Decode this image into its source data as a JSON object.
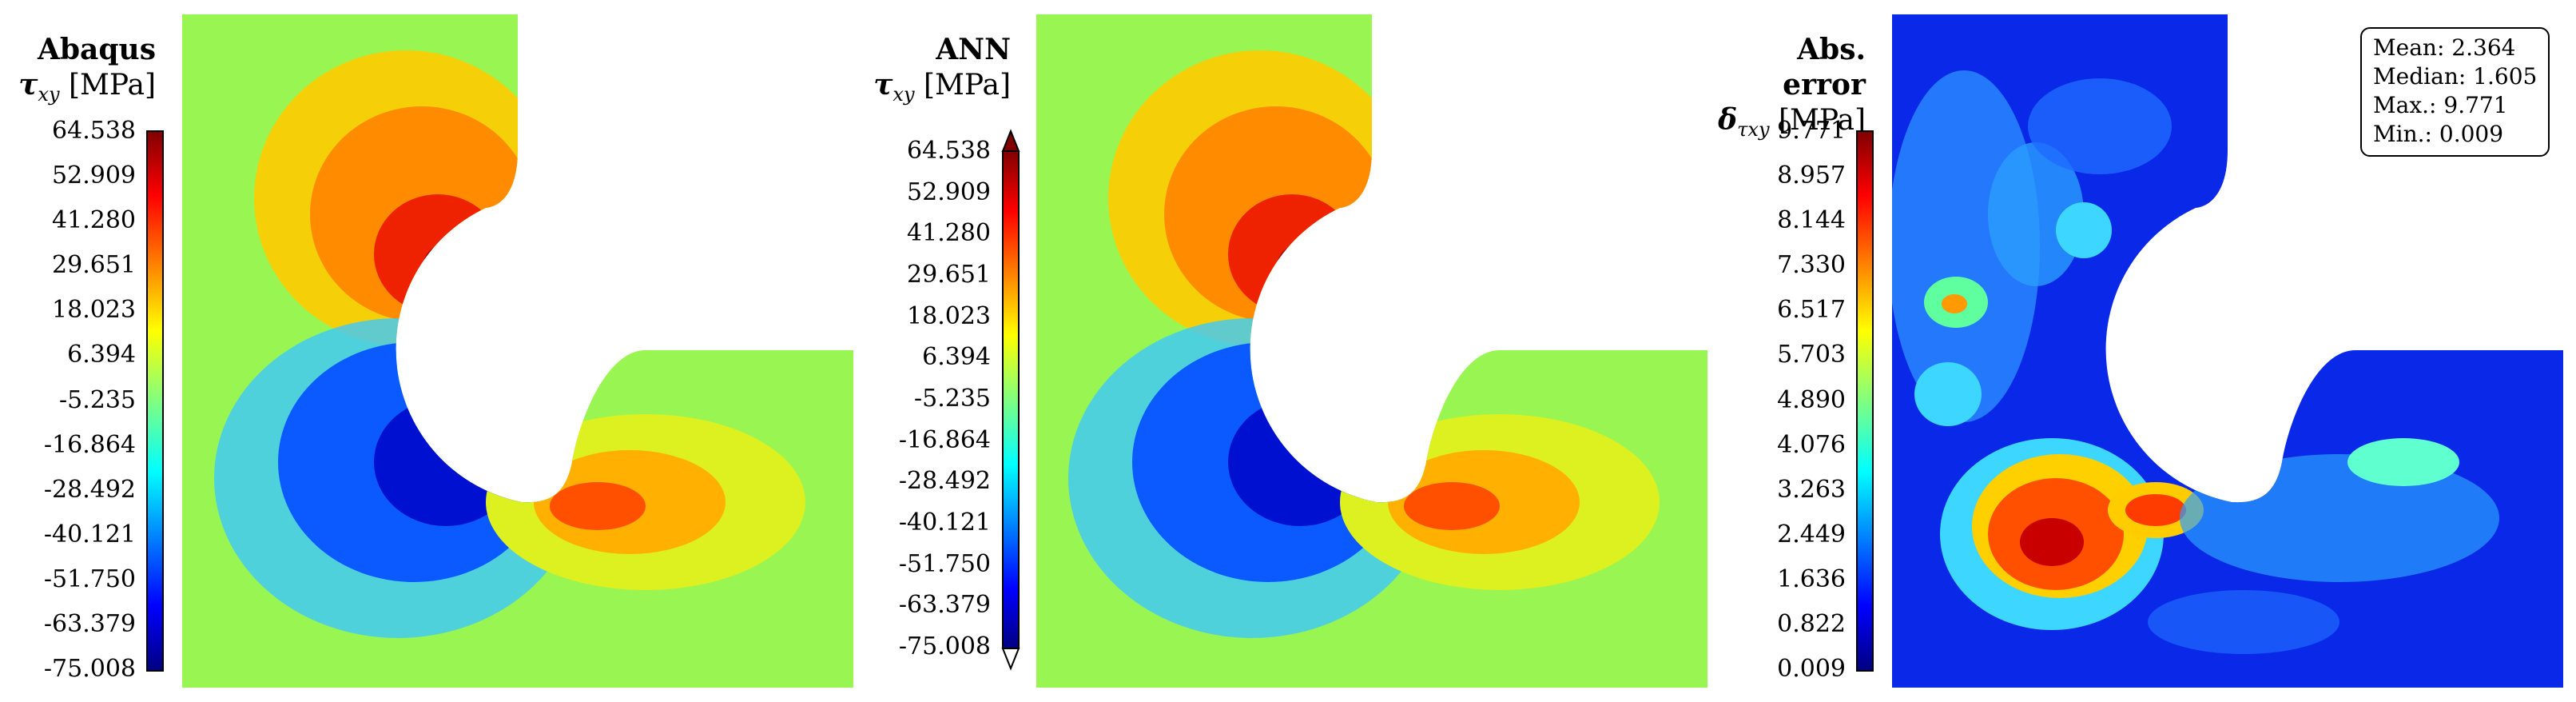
{
  "chart_data": [
    {
      "type": "heatmap",
      "title": "Abaqus",
      "quantity_symbol": "τ",
      "quantity_subscript": "xy",
      "unit": "[MPa]",
      "colormap": "jet",
      "colorbar_ticks": [
        "64.538",
        "52.909",
        "41.280",
        "29.651",
        "18.023",
        "6.394",
        "-5.235",
        "-16.864",
        "-28.492",
        "-40.121",
        "-51.750",
        "-63.379",
        "-75.008"
      ],
      "colorbar_range": [
        -75.008,
        64.538
      ],
      "colorbar_extend": false
    },
    {
      "type": "heatmap",
      "title": "ANN",
      "quantity_symbol": "τ",
      "quantity_subscript": "xy",
      "unit": "[MPa]",
      "colormap": "jet",
      "colorbar_ticks": [
        "64.538",
        "52.909",
        "41.280",
        "29.651",
        "18.023",
        "6.394",
        "-5.235",
        "-16.864",
        "-28.492",
        "-40.121",
        "-51.750",
        "-63.379",
        "-75.008"
      ],
      "colorbar_range": [
        -75.008,
        64.538
      ],
      "colorbar_extend": true
    },
    {
      "type": "heatmap",
      "title": "Abs. error",
      "quantity_symbol": "δ",
      "quantity_subscript": "τxy",
      "unit": "[MPa]",
      "colormap": "jet",
      "colorbar_ticks": [
        "9.771",
        "8.957",
        "8.144",
        "7.330",
        "6.517",
        "5.703",
        "4.890",
        "4.076",
        "3.263",
        "2.449",
        "1.636",
        "0.822",
        "0.009"
      ],
      "colorbar_range": [
        0.009,
        9.771
      ],
      "colorbar_extend": false,
      "stats": {
        "mean": "Mean: 2.364",
        "median": "Median: 1.605",
        "max": "Max.: 9.771",
        "min": "Min.: 0.009"
      }
    }
  ]
}
